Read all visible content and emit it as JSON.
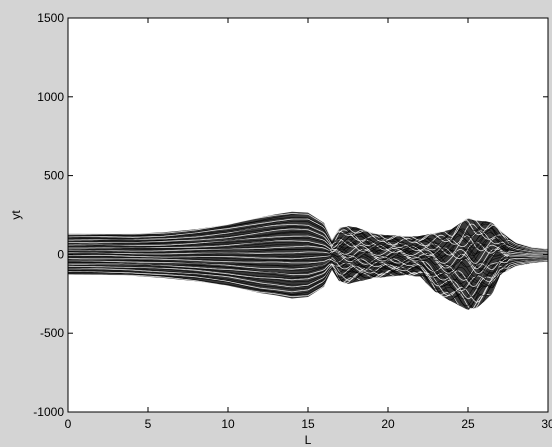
{
  "chart_data": {
    "type": "line",
    "title": "",
    "xlabel": "L",
    "ylabel": "yt",
    "xlim": [
      0,
      30
    ],
    "ylim": [
      -1000,
      1500
    ],
    "x_ticks": [
      0,
      5,
      10,
      15,
      20,
      25,
      30
    ],
    "y_ticks": [
      1500,
      1000,
      500,
      0,
      -500,
      -1000
    ],
    "grid": false,
    "legend": "none",
    "colors": {
      "axes_bg": "#ffffff",
      "figure_bg": "#d4d4d4",
      "series": "#000000"
    },
    "envelope": {
      "description": "Dense family of trajectories; approximate upper and lower extents of the curve bundle",
      "x": [
        0,
        2,
        4,
        6,
        8,
        10,
        12,
        13,
        14,
        15,
        16,
        16.5,
        17,
        17.5,
        18,
        19,
        20,
        21,
        22,
        23,
        24,
        25,
        25.5,
        26,
        26.5,
        27,
        28,
        29,
        30
      ],
      "upper": [
        130,
        130,
        130,
        140,
        160,
        190,
        235,
        255,
        270,
        265,
        200,
        90,
        170,
        180,
        170,
        135,
        120,
        115,
        115,
        135,
        160,
        230,
        215,
        210,
        200,
        150,
        75,
        45,
        35
      ],
      "lower": [
        -130,
        -130,
        -135,
        -150,
        -170,
        -200,
        -245,
        -260,
        -280,
        -270,
        -205,
        -95,
        -175,
        -185,
        -175,
        -150,
        -140,
        -130,
        -140,
        -240,
        -300,
        -350,
        -340,
        -300,
        -250,
        -130,
        -75,
        -55,
        -45
      ]
    }
  }
}
